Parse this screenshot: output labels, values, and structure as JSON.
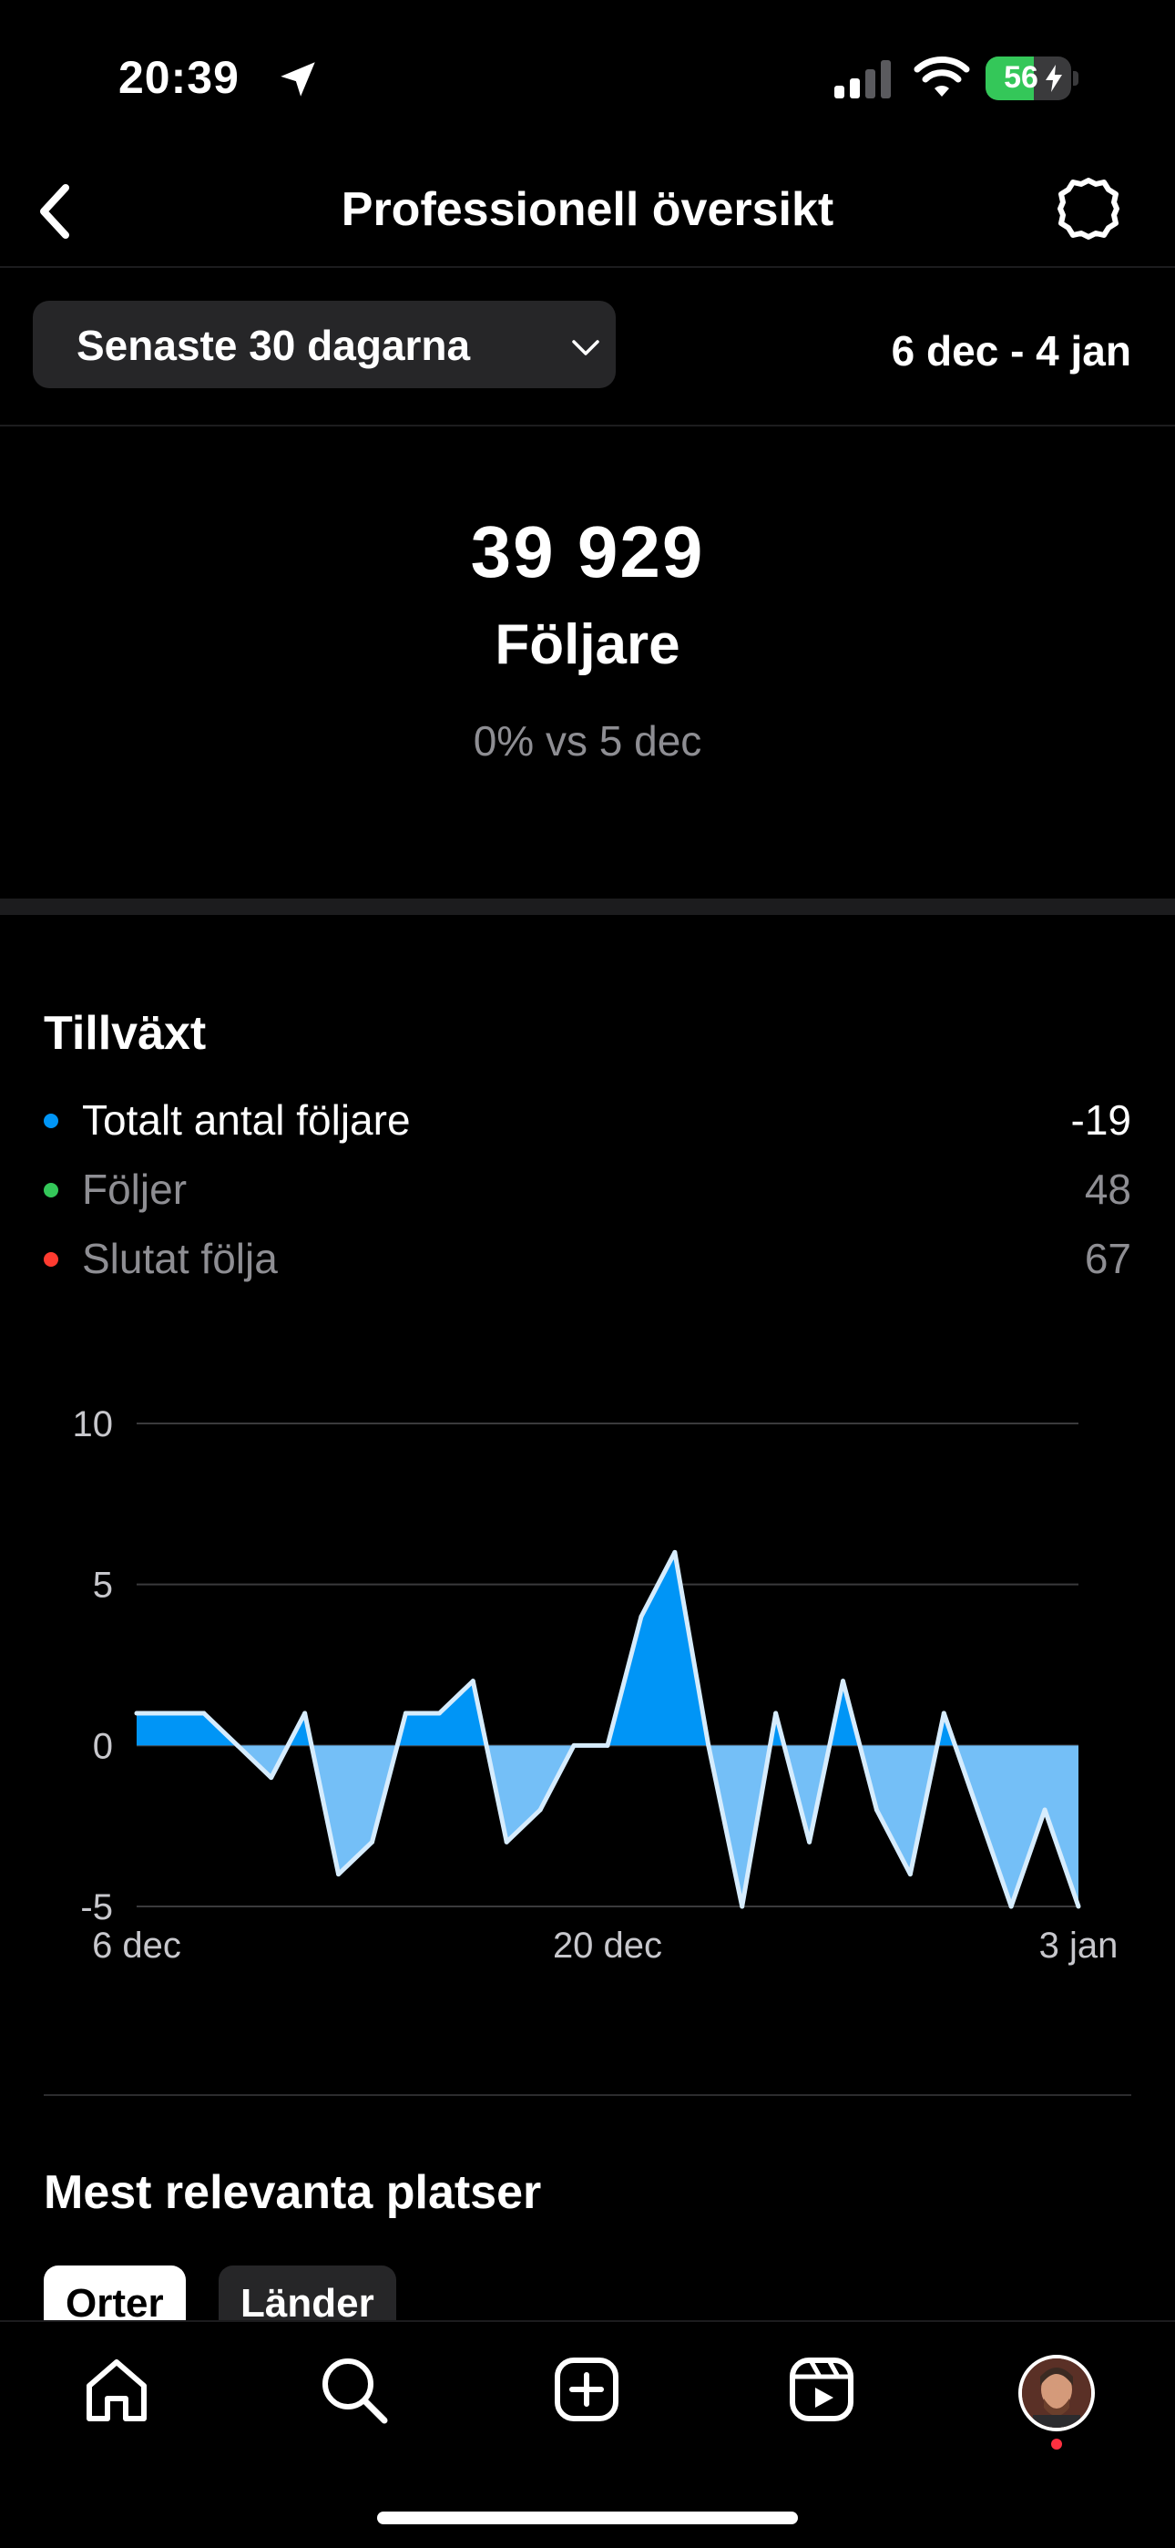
{
  "status_bar": {
    "time": "20:39",
    "battery": "56",
    "battery_level": 0.56
  },
  "header": {
    "title": "Professionell översikt"
  },
  "filter": {
    "range_label": "Senaste 30 dagarna",
    "date_range": "6 dec - 4 jan"
  },
  "summary": {
    "followers_count": "39 929",
    "followers_label": "Följare",
    "comparison": "0% vs 5 dec"
  },
  "growth": {
    "title": "Tillväxt",
    "legend": [
      {
        "label": "Totalt antal följare",
        "value": "-19",
        "color": "#0095f6"
      },
      {
        "label": "Följer",
        "value": "48",
        "color": "#34c759"
      },
      {
        "label": "Slutat följa",
        "value": "67",
        "color": "#ff3b30"
      }
    ]
  },
  "chart_data": {
    "type": "area",
    "x": [
      "6 dec",
      "7 dec",
      "8 dec",
      "9 dec",
      "10 dec",
      "11 dec",
      "12 dec",
      "13 dec",
      "14 dec",
      "15 dec",
      "16 dec",
      "17 dec",
      "18 dec",
      "19 dec",
      "20 dec",
      "21 dec",
      "22 dec",
      "23 dec",
      "24 dec",
      "25 dec",
      "26 dec",
      "27 dec",
      "28 dec",
      "29 dec",
      "30 dec",
      "31 dec",
      "1 jan",
      "2 jan",
      "3 jan"
    ],
    "series": [
      {
        "values": [
          1,
          1,
          1,
          0,
          -1,
          1,
          -4,
          -3,
          1,
          1,
          2,
          -3,
          -2,
          0,
          0,
          4,
          6,
          0,
          -5,
          1,
          -3,
          2,
          -2,
          -4,
          1,
          -2,
          -5,
          -2,
          -5
        ]
      }
    ],
    "xticks": [
      "6 dec",
      "20 dec",
      "3 jan"
    ],
    "yticks": [
      "10",
      "5",
      "0",
      "-5"
    ],
    "ylim": [
      -5,
      10
    ],
    "grid": true,
    "colors": {
      "positive": "#0095f6",
      "negative": "#74bff7",
      "line": "#d6ecfd"
    }
  },
  "places": {
    "title": "Mest relevanta platser",
    "tabs": [
      {
        "label": "Orter"
      },
      {
        "label": "Länder"
      }
    ]
  },
  "tabbar": {
    "items": [
      "home-icon",
      "search-icon",
      "create-icon",
      "reels-icon",
      "profile-avatar"
    ]
  }
}
